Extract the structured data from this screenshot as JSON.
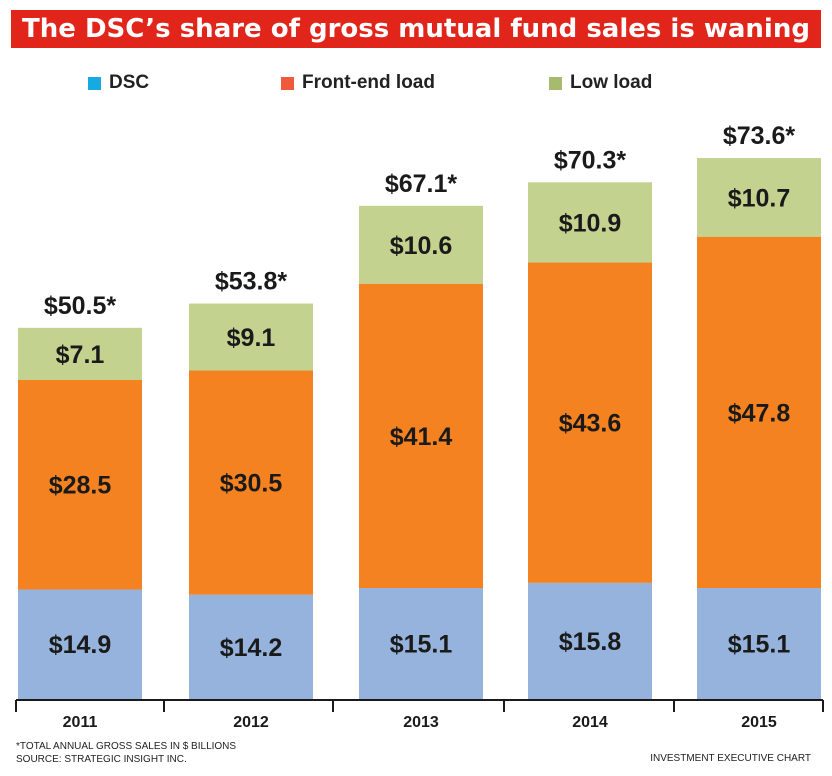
{
  "title": "The DSC’s share of gross mutual fund sales is waning",
  "legend": [
    {
      "label": "DSC",
      "swatch": "#17a9e1"
    },
    {
      "label": "Front-end load",
      "swatch": "#ef5b3a"
    },
    {
      "label": "Low load",
      "swatch": "#a6bb6b"
    }
  ],
  "chart_data": {
    "type": "bar",
    "stacked": true,
    "categories": [
      "2011",
      "2012",
      "2013",
      "2014",
      "2015"
    ],
    "series": [
      {
        "name": "DSC",
        "color": "#95b3dc",
        "values": [
          14.9,
          14.2,
          15.1,
          15.8,
          15.1
        ],
        "labels": [
          "$14.9",
          "$14.2",
          "$15.1",
          "$15.8",
          "$15.1"
        ]
      },
      {
        "name": "Front-end load",
        "color": "#f58220",
        "values": [
          28.5,
          30.5,
          41.4,
          43.6,
          47.8
        ],
        "labels": [
          "$28.5",
          "$30.5",
          "$41.4",
          "$43.6",
          "$47.8"
        ]
      },
      {
        "name": "Low load",
        "color": "#c3d28f",
        "values": [
          7.1,
          9.1,
          10.6,
          10.9,
          10.7
        ],
        "labels": [
          "$7.1",
          "$9.1",
          "$10.6",
          "$10.9",
          "$10.7"
        ]
      }
    ],
    "totals": [
      50.5,
      53.8,
      67.1,
      70.3,
      73.6
    ],
    "total_labels": [
      "$50.5*",
      "$53.8*",
      "$67.1*",
      "$70.3*",
      "$73.6*"
    ],
    "ylim": [
      0,
      80
    ],
    "grid": false
  },
  "footnote": [
    "*TOTAL ANNUAL GROSS SALES IN $ BILLIONS",
    "SOURCE: STRATEGIC INSIGHT INC."
  ],
  "credit": "INVESTMENT EXECUTIVE CHART"
}
